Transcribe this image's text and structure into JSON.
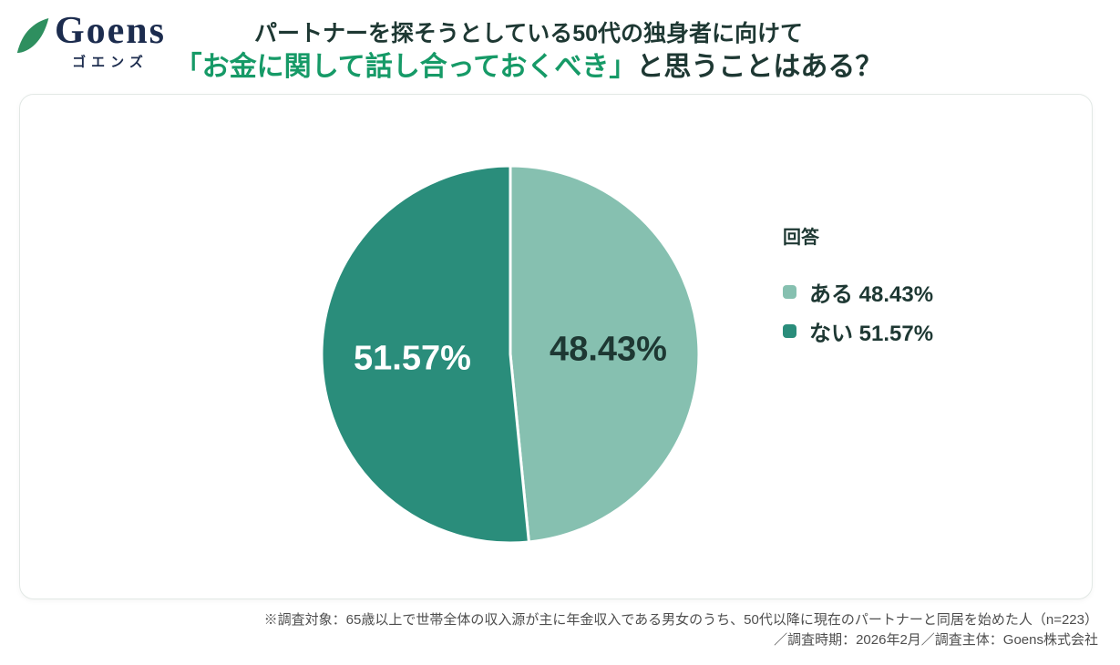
{
  "logo": {
    "name": "Goens",
    "subtitle": "ゴエンズ"
  },
  "title": {
    "line1": "パートナーを探そうとしている50代の独身者に向けて",
    "line2_highlight": "「お金に関して話し合っておくべき」",
    "line2_rest": "と思うことはある？"
  },
  "legend": {
    "heading": "回答",
    "items": [
      {
        "label": "ある 48.43%"
      },
      {
        "label": "ない 51.57%"
      }
    ]
  },
  "chart_data": {
    "type": "pie",
    "title": "パートナーを探そうとしている50代の独身者に向けて「お金に関して話し合っておくべき」と思うことはある？",
    "categories": [
      "ある",
      "ない"
    ],
    "values": [
      48.43,
      51.57
    ],
    "labels": [
      "48.43%",
      "51.57%"
    ],
    "colors": [
      "#86C0B0",
      "#2A8D7B"
    ],
    "label_colors": [
      "#1E3833",
      "#FFFFFF"
    ],
    "start_angle_deg": 0,
    "direction": "clockwise",
    "slice_gap_stroke": "#FFFFFF",
    "legend_position": "right"
  },
  "footnote": {
    "line1": "※調査対象：65歳以上で世帯全体の収入源が主に年金収入である男女のうち、50代以降に現在のパートナーと同居を始めた人（n=223）",
    "line2": "／調査時期：2026年2月／調査主体：Goens株式会社"
  },
  "colors": {
    "accent_green": "#169A67",
    "ink_dark": "#1E3833",
    "logo_navy": "#1C2C4E",
    "leaf_green": "#2E8F5F",
    "footnote_gray": "#4E4E4E",
    "pie_light": "#86C0B0",
    "pie_dark": "#2A8D7B",
    "card_border": "#E2E8E5"
  }
}
